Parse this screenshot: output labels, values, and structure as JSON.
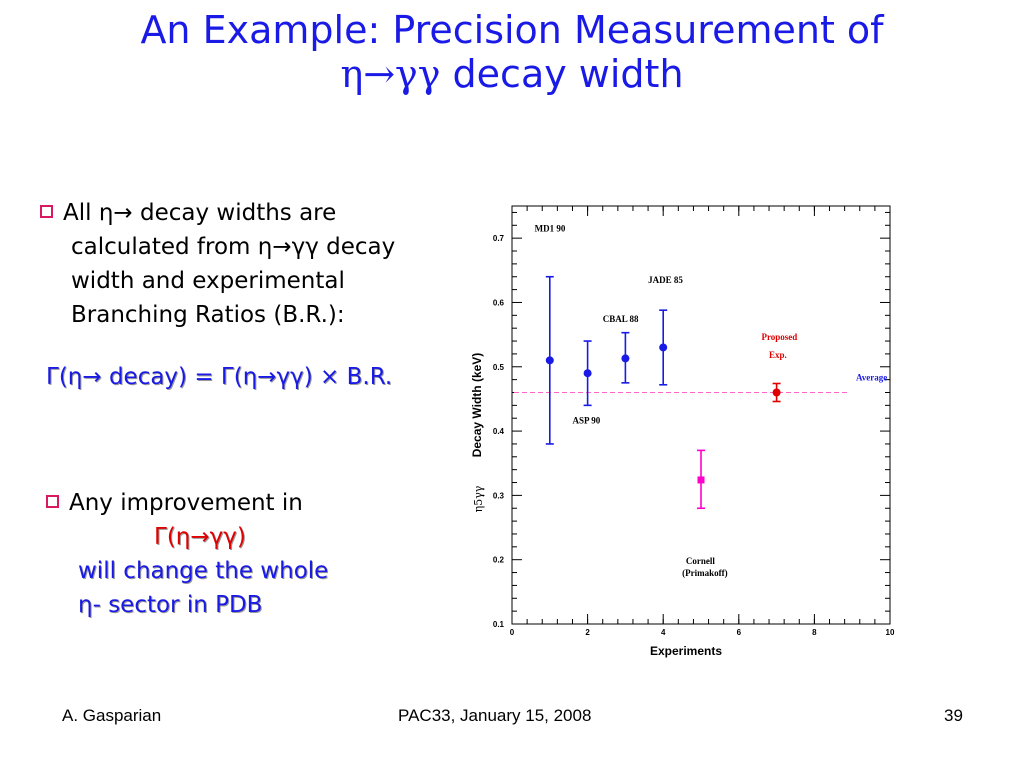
{
  "slide": {
    "title_line1": "An Example: Precision Measurement of",
    "title_line2_symbol": "η→γγ",
    "title_line2_text": " decay width",
    "bullet1": [
      "All η→ decay widths are",
      "calculated from η→γγ decay",
      "width and experimental",
      "Branching Ratios (B.R.):"
    ],
    "formula": "Γ(η→ decay) = Γ(η→γγ) × B.R.",
    "bullet2": {
      "line1": "Any improvement in",
      "line2": "Γ(η→γγ)",
      "line3": "will change the whole",
      "line4": "η- sector in PDB"
    },
    "footer": {
      "author": "A. Gasparian",
      "event": "PAC33, January 15, 2008",
      "page": "39"
    }
  },
  "chart_data": {
    "type": "scatter",
    "xlabel": "Experiments",
    "ylabel": "Decay Width (keV)",
    "ylabel_symbol": "η5γγ",
    "xlim": [
      0,
      10
    ],
    "ylim": [
      0.1,
      0.75
    ],
    "xticks": [
      "0",
      "2",
      "4",
      "6",
      "8",
      "10"
    ],
    "yticks": [
      "0.1",
      "0.2",
      "0.3",
      "0.4",
      "0.5",
      "0.6",
      "0.7"
    ],
    "points": [
      {
        "label": "MD1 90",
        "x": 1,
        "y": 0.51,
        "err_low": 0.38,
        "err_high": 0.64,
        "color": "#1a1ae6",
        "marker": "circle"
      },
      {
        "label": "ASP 90",
        "x": 2,
        "y": 0.49,
        "err_low": 0.44,
        "err_high": 0.54,
        "color": "#1a1ae6",
        "marker": "circle"
      },
      {
        "label": "CBAL 88",
        "x": 3,
        "y": 0.513,
        "err_low": 0.475,
        "err_high": 0.553,
        "color": "#1a1ae6",
        "marker": "circle"
      },
      {
        "label": "JADE 85",
        "x": 4,
        "y": 0.53,
        "err_low": 0.472,
        "err_high": 0.588,
        "color": "#1a1ae6",
        "marker": "circle"
      },
      {
        "label": "Cornell (Primakoff)",
        "x": 5,
        "y": 0.324,
        "err_low": 0.28,
        "err_high": 0.37,
        "color": "#ff00cc",
        "marker": "square"
      },
      {
        "label": "Proposed Exp.",
        "x": 7,
        "y": 0.46,
        "err_low": 0.446,
        "err_high": 0.474,
        "color": "#e00000",
        "marker": "circle"
      }
    ],
    "annotations": [
      {
        "text": "MD1 90",
        "color": "#000000"
      },
      {
        "text": "ASP 90",
        "color": "#000000"
      },
      {
        "text": "CBAL 88",
        "color": "#000000"
      },
      {
        "text": "JADE 85",
        "color": "#000000"
      },
      {
        "text": "Cornell",
        "color": "#000000"
      },
      {
        "text": "(Primakoff)",
        "color": "#000000"
      },
      {
        "text": "Proposed",
        "color": "#e00000"
      },
      {
        "text": "Exp.",
        "color": "#e00000"
      },
      {
        "text": "Average",
        "color": "#1a1ae6"
      }
    ],
    "average": {
      "y": 0.46,
      "label": "Average",
      "color": "#ff66cc"
    }
  }
}
